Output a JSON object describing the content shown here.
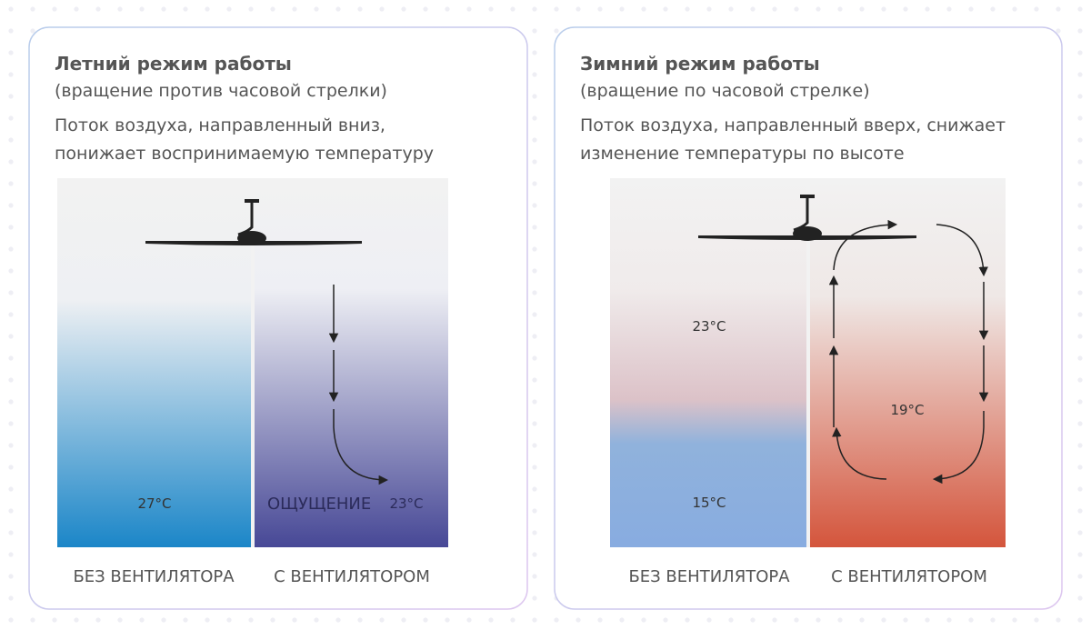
{
  "summer": {
    "title": "Летний режим работы",
    "subtitle": "(вращение против часовой стрелки)",
    "description": [
      "Поток воздуха, направленный вниз,",
      "понижает воспринимаемую температуру"
    ],
    "temp_without": "27°C",
    "feeling": "ОЩУЩЕНИЕ",
    "temp_with": "23°C",
    "label_without": "БЕЗ ВЕНТИЛЯТОРА",
    "label_with": "С ВЕНТИЛЯТОРОМ"
  },
  "winter": {
    "title": "Зимний режим работы",
    "subtitle": "(вращение по часовой стрелке)",
    "description": [
      "Поток воздуха, направленный вверх, снижает",
      "изменение температуры по высоте"
    ],
    "temp_top": "23°C",
    "temp_bottom": "15°C",
    "temp_with": "19°C",
    "label_without": "БЕЗ ВЕНТИЛЯТОРА",
    "label_with": "С ВЕНТИЛЯТОРОМ"
  }
}
